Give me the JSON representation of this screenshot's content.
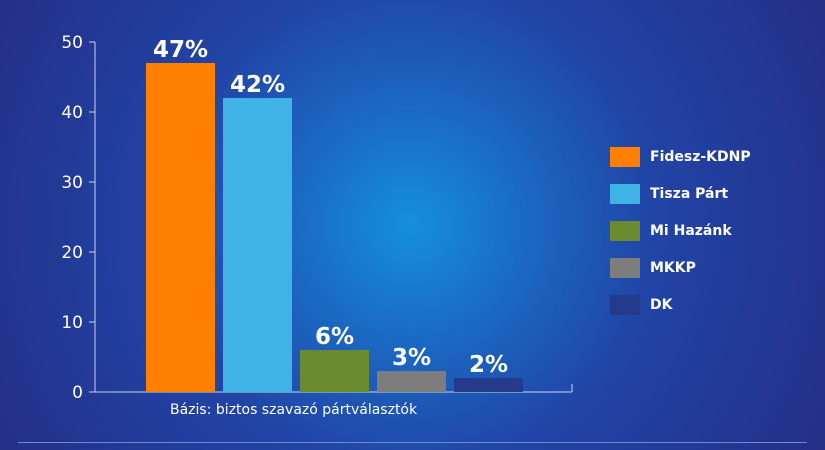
{
  "chart_data": {
    "type": "bar",
    "categories": [
      "Fidesz-KDNP",
      "Tisza Párt",
      "Mi Hazánk",
      "MKKP",
      "DK"
    ],
    "values": [
      47,
      42,
      6,
      3,
      2
    ],
    "data_labels": [
      "47%",
      "42%",
      "6%",
      "3%",
      "2%"
    ],
    "colors": [
      "#ff7f00",
      "#3fb2e6",
      "#6a8c2e",
      "#7d7d7d",
      "#253a8a"
    ],
    "ylim": [
      0,
      50
    ],
    "yticks": [
      0,
      10,
      20,
      30,
      40,
      50
    ],
    "legend_position": "right",
    "grid": false
  },
  "legend": {
    "items": [
      {
        "label": "Fidesz-KDNP",
        "color": "#ff7f00"
      },
      {
        "label": "Tisza Párt",
        "color": "#3fb2e6"
      },
      {
        "label": "Mi Hazánk",
        "color": "#6a8c2e"
      },
      {
        "label": "MKKP",
        "color": "#7d7d7d"
      },
      {
        "label": "DK",
        "color": "#253a8a"
      }
    ]
  },
  "footer": {
    "base_note": "Bázis: biztos szavazó pártválasztók"
  }
}
